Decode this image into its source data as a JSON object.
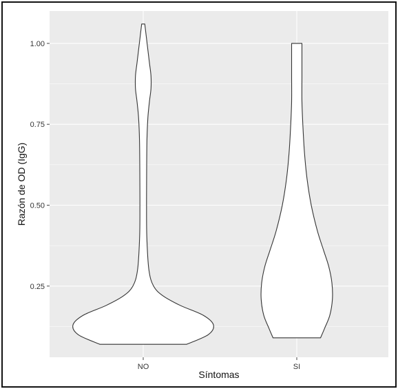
{
  "colors": {
    "panel_background": "#ebebeb",
    "grid_major": "#ffffff",
    "violin_fill": "#ffffff",
    "violin_outline": "#333333"
  },
  "chart_data": {
    "type": "violin",
    "title": "",
    "xlabel": "Síntomas",
    "ylabel": "Razón de OD (IgG)",
    "categories": [
      "NO",
      "SI"
    ],
    "y_ticks": [
      0.25,
      0.5,
      0.75,
      1.0
    ],
    "y_tick_labels": [
      "0.25",
      "0.50",
      "0.75",
      "1.00"
    ],
    "ylim": [
      0.03,
      1.1
    ],
    "grid": true,
    "legend": "none",
    "series": [
      {
        "category": "NO",
        "y_min": 0.07,
        "y_max": 1.06,
        "density_profile": [
          [
            0.07,
            0.42
          ],
          [
            0.1,
            0.63
          ],
          [
            0.13,
            0.68
          ],
          [
            0.16,
            0.58
          ],
          [
            0.19,
            0.36
          ],
          [
            0.22,
            0.19
          ],
          [
            0.25,
            0.1
          ],
          [
            0.3,
            0.055
          ],
          [
            0.4,
            0.035
          ],
          [
            0.5,
            0.032
          ],
          [
            0.6,
            0.033
          ],
          [
            0.7,
            0.036
          ],
          [
            0.77,
            0.045
          ],
          [
            0.82,
            0.06
          ],
          [
            0.86,
            0.075
          ],
          [
            0.9,
            0.075
          ],
          [
            0.94,
            0.06
          ],
          [
            0.98,
            0.045
          ],
          [
            1.02,
            0.03
          ],
          [
            1.06,
            0.015
          ]
        ]
      },
      {
        "category": "SI",
        "y_min": 0.09,
        "y_max": 1.0,
        "density_profile": [
          [
            0.09,
            0.23
          ],
          [
            0.12,
            0.27
          ],
          [
            0.16,
            0.32
          ],
          [
            0.21,
            0.345
          ],
          [
            0.26,
            0.34
          ],
          [
            0.31,
            0.31
          ],
          [
            0.36,
            0.26
          ],
          [
            0.42,
            0.2
          ],
          [
            0.5,
            0.14
          ],
          [
            0.58,
            0.1
          ],
          [
            0.66,
            0.075
          ],
          [
            0.74,
            0.06
          ],
          [
            0.82,
            0.05
          ],
          [
            0.9,
            0.05
          ],
          [
            1.0,
            0.05
          ]
        ]
      }
    ]
  }
}
